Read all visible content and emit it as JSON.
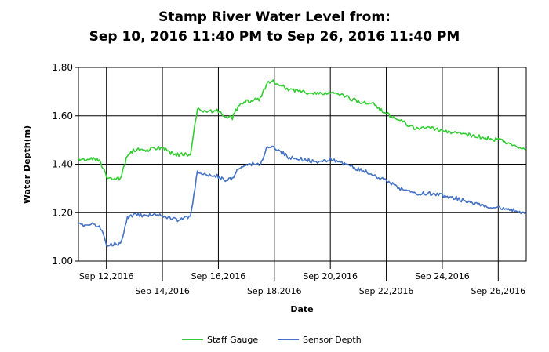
{
  "chart_data": {
    "type": "line",
    "title_line1": "Stamp River Water Level from:",
    "title_line2": "Sep 10, 2016 11:40 PM to Sep 26, 2016 11:40 PM",
    "xlabel": "Date",
    "ylabel": "Water Depth(m)",
    "ylim": [
      1.0,
      1.8
    ],
    "yticks": [
      "1.00",
      "1.20",
      "1.40",
      "1.60",
      "1.80"
    ],
    "x_range_days": [
      "2016-09-11",
      "2016-09-27"
    ],
    "xticks": [
      {
        "date": "2016-09-12",
        "label": "Sep 12,2016"
      },
      {
        "date": "2016-09-14",
        "label": "Sep 14,2016"
      },
      {
        "date": "2016-09-16",
        "label": "Sep 16,2016"
      },
      {
        "date": "2016-09-18",
        "label": "Sep 18,2016"
      },
      {
        "date": "2016-09-20",
        "label": "Sep 20,2016"
      },
      {
        "date": "2016-09-22",
        "label": "Sep 22,2016"
      },
      {
        "date": "2016-09-24",
        "label": "Sep 24,2016"
      },
      {
        "date": "2016-09-26",
        "label": "Sep 26,2016"
      }
    ],
    "grid": true,
    "legend_position": "bottom-center",
    "series": [
      {
        "name": "Staff Gauge",
        "color": "#33cc33",
        "x": [
          "2016-09-11 00:00",
          "2016-09-11 12:00",
          "2016-09-11 18:00",
          "2016-09-12 00:00",
          "2016-09-12 06:00",
          "2016-09-12 12:00",
          "2016-09-12 18:00",
          "2016-09-13 00:00",
          "2016-09-13 12:00",
          "2016-09-14 00:00",
          "2016-09-14 06:00",
          "2016-09-14 12:00",
          "2016-09-15 00:00",
          "2016-09-15 06:00",
          "2016-09-15 12:00",
          "2016-09-16 00:00",
          "2016-09-16 06:00",
          "2016-09-16 12:00",
          "2016-09-16 18:00",
          "2016-09-17 00:00",
          "2016-09-17 12:00",
          "2016-09-17 18:00",
          "2016-09-18 00:00",
          "2016-09-18 12:00",
          "2016-09-19 00:00",
          "2016-09-19 12:00",
          "2016-09-20 00:00",
          "2016-09-20 12:00",
          "2016-09-21 00:00",
          "2016-09-21 12:00",
          "2016-09-22 00:00",
          "2016-09-22 12:00",
          "2016-09-23 00:00",
          "2016-09-23 12:00",
          "2016-09-24 00:00",
          "2016-09-24 12:00",
          "2016-09-25 00:00",
          "2016-09-25 12:00",
          "2016-09-26 00:00",
          "2016-09-26 12:00",
          "2016-09-26 23:40"
        ],
        "values": [
          1.42,
          1.42,
          1.42,
          1.35,
          1.34,
          1.34,
          1.44,
          1.46,
          1.46,
          1.47,
          1.45,
          1.44,
          1.44,
          1.63,
          1.62,
          1.62,
          1.6,
          1.59,
          1.65,
          1.66,
          1.67,
          1.74,
          1.74,
          1.71,
          1.7,
          1.69,
          1.7,
          1.68,
          1.66,
          1.65,
          1.61,
          1.58,
          1.55,
          1.55,
          1.54,
          1.53,
          1.52,
          1.51,
          1.5,
          1.48,
          1.46
        ]
      },
      {
        "name": "Sensor Depth",
        "color": "#4472c4",
        "x": [
          "2016-09-11 00:00",
          "2016-09-11 12:00",
          "2016-09-11 18:00",
          "2016-09-12 00:00",
          "2016-09-12 06:00",
          "2016-09-12 12:00",
          "2016-09-12 18:00",
          "2016-09-13 00:00",
          "2016-09-13 12:00",
          "2016-09-14 00:00",
          "2016-09-14 06:00",
          "2016-09-14 12:00",
          "2016-09-15 00:00",
          "2016-09-15 06:00",
          "2016-09-15 12:00",
          "2016-09-16 00:00",
          "2016-09-16 06:00",
          "2016-09-16 12:00",
          "2016-09-16 18:00",
          "2016-09-17 00:00",
          "2016-09-17 12:00",
          "2016-09-17 18:00",
          "2016-09-18 00:00",
          "2016-09-18 12:00",
          "2016-09-19 00:00",
          "2016-09-19 12:00",
          "2016-09-20 00:00",
          "2016-09-20 12:00",
          "2016-09-21 00:00",
          "2016-09-21 12:00",
          "2016-09-22 00:00",
          "2016-09-22 12:00",
          "2016-09-23 00:00",
          "2016-09-23 12:00",
          "2016-09-24 00:00",
          "2016-09-24 12:00",
          "2016-09-25 00:00",
          "2016-09-25 12:00",
          "2016-09-26 00:00",
          "2016-09-26 12:00",
          "2016-09-26 23:40"
        ],
        "values": [
          1.15,
          1.15,
          1.15,
          1.07,
          1.07,
          1.07,
          1.18,
          1.19,
          1.19,
          1.19,
          1.18,
          1.17,
          1.18,
          1.37,
          1.36,
          1.35,
          1.33,
          1.34,
          1.39,
          1.4,
          1.4,
          1.47,
          1.47,
          1.43,
          1.42,
          1.41,
          1.42,
          1.4,
          1.38,
          1.36,
          1.33,
          1.3,
          1.28,
          1.28,
          1.27,
          1.26,
          1.24,
          1.23,
          1.22,
          1.21,
          1.2
        ]
      }
    ]
  }
}
